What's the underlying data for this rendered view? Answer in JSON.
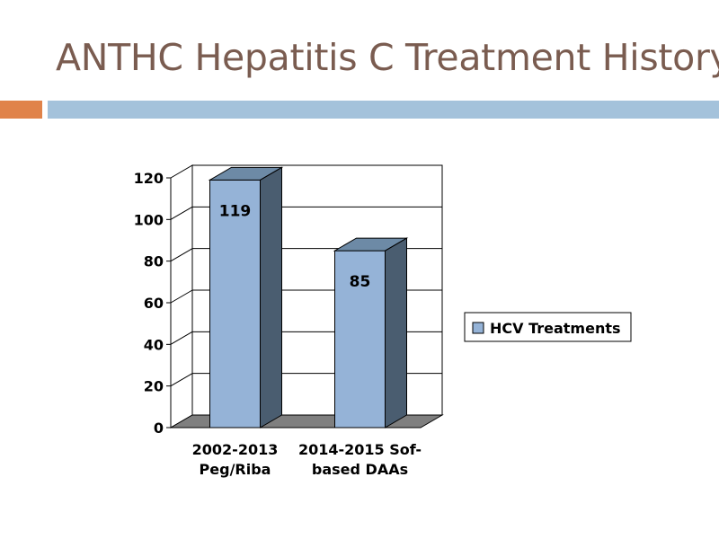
{
  "slide": {
    "title": "ANTHC Hepatitis C Treatment History"
  },
  "colors": {
    "title": "#7a5c50",
    "accent": "#e0834a",
    "rule": "#a4c2db",
    "bar_front": "#95b3d7",
    "bar_side": "#4a5d70",
    "bar_top": "#6d8aa6",
    "floor": "#7f7f7f",
    "grid": "#000000"
  },
  "chart_data": {
    "type": "bar",
    "title": "",
    "xlabel": "",
    "ylabel": "",
    "categories": [
      [
        "2002-2013",
        "Peg/Riba"
      ],
      [
        "2014-2015 Sof-",
        "based DAAs"
      ]
    ],
    "series": [
      {
        "name": "HCV Treatments",
        "values": [
          119,
          85
        ]
      }
    ],
    "data_labels": [
      "119",
      "85"
    ],
    "ylim": [
      0,
      120
    ],
    "yticks": [
      0,
      20,
      40,
      60,
      80,
      100,
      120
    ],
    "grid": true,
    "legend_position": "right",
    "style": "3d"
  }
}
